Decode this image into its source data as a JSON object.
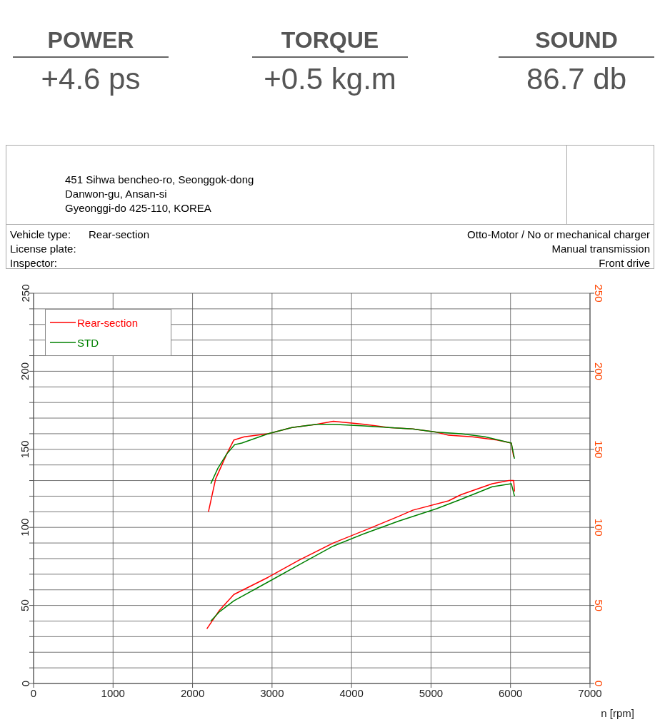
{
  "chart_data": {
    "type": "line",
    "xlabel": "n [rpm]",
    "annotations": [
      "POWER",
      "+4.6 ps",
      "TORQUE",
      "+0.5 kg.m",
      "SOUND",
      "86.7 db",
      "451 Sihwa bencheo-ro, Seonggok-dong",
      "Danwon-gu, Ansan-si",
      "Gyeonggi-do 425-110, KOREA",
      "Vehicle type:",
      "Rear-section",
      "License plate:",
      "Inspector:",
      "Otto-Motor / No or mechanical charger",
      "Manual transmission",
      "Front drive"
    ],
    "xlim": [
      0,
      7000
    ],
    "xticks": [
      0,
      1000,
      2000,
      3000,
      4000,
      5000,
      6000,
      7000
    ],
    "ylim": [
      0,
      250
    ],
    "yticks": [
      0,
      {
        "value": 10,
        "label": null
      },
      {
        "value": 20,
        "label": null
      },
      {
        "value": 30,
        "label": null
      },
      {
        "value": 40,
        "label": null
      },
      50,
      {
        "value": 60,
        "label": null
      },
      {
        "value": 70,
        "label": null
      },
      {
        "value": 80,
        "label": null
      },
      {
        "value": 90,
        "label": null
      },
      100,
      {
        "value": 110,
        "label": null
      },
      {
        "value": 120,
        "label": null
      },
      {
        "value": 130,
        "label": null
      },
      {
        "value": 140,
        "label": null
      },
      150,
      {
        "value": 160,
        "label": null
      },
      {
        "value": 170,
        "label": null
      },
      {
        "value": 180,
        "label": null
      },
      {
        "value": 190,
        "label": null
      },
      200,
      {
        "value": 210,
        "label": null
      },
      {
        "value": 220,
        "label": null
      },
      {
        "value": 230,
        "label": null
      },
      {
        "value": 240,
        "label": null
      },
      250
    ],
    "y2lim": [
      0,
      250
    ],
    "y2ticks": [
      0,
      50,
      100,
      150,
      200,
      250
    ],
    "grid": true,
    "legend": "top left",
    "marker": "none",
    "line_style": "solid",
    "series": [
      {
        "name": "Rear-section",
        "color": "#ff0000",
        "x": [
          2200,
          2290,
          2430,
          2520,
          2650,
          2950,
          3250,
          3560,
          3770,
          4160,
          4470,
          4770,
          5070,
          5220,
          5520,
          5830,
          6010,
          6040
        ],
        "values": [
          110,
          131,
          147,
          156,
          158,
          160,
          164,
          166,
          168,
          166,
          164,
          163,
          161,
          159,
          158,
          156,
          154,
          145
        ]
      },
      {
        "name": "STD",
        "color": "#008000",
        "x": [
          2230,
          2320,
          2430,
          2530,
          2620,
          2950,
          3250,
          3560,
          3770,
          4160,
          4470,
          4770,
          5070,
          5380,
          5680,
          6010,
          6050
        ],
        "values": [
          128,
          138,
          147,
          153,
          154,
          160,
          164,
          166,
          166,
          165,
          164,
          163,
          161,
          160,
          158,
          154,
          144
        ]
      },
      {
        "color": "#ff0000",
        "axis": "y2",
        "x": [
          2180,
          2340,
          2520,
          2950,
          3340,
          3770,
          4160,
          4590,
          4770,
          5220,
          5380,
          5770,
          5980,
          6040,
          6050
        ],
        "values": [
          35,
          47,
          57,
          68,
          79,
          90,
          98,
          107,
          111,
          117,
          121,
          128,
          130,
          130,
          123
        ]
      },
      {
        "color": "#008000",
        "axis": "y2",
        "x": [
          2230,
          2340,
          2520,
          2950,
          3340,
          3770,
          4160,
          4590,
          5070,
          5380,
          5770,
          6010,
          6050
        ],
        "values": [
          40,
          46,
          53,
          65,
          76,
          88,
          96,
          104,
          112,
          118,
          126,
          128,
          120
        ]
      }
    ]
  }
}
